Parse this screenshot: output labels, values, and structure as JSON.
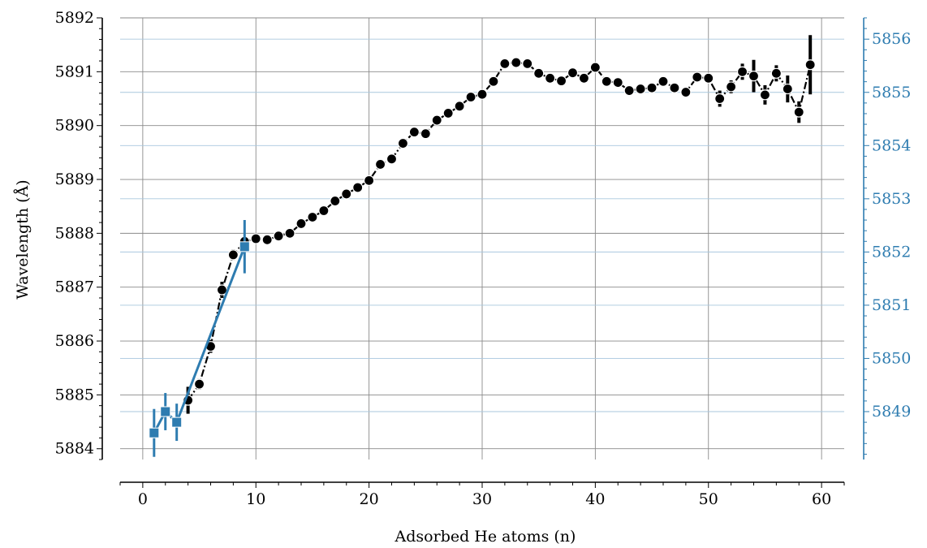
{
  "chart_data": {
    "type": "scatter",
    "title": "",
    "xlabel": "Adsorbed He atoms (n)",
    "ylabel": "Wavelength (Å)",
    "xlim": [
      -2,
      62
    ],
    "ylim": [
      5883.8,
      5892.0
    ],
    "y2lim": [
      5848.1,
      5856.4
    ],
    "x_ticks": [
      0,
      10,
      20,
      30,
      40,
      50,
      60
    ],
    "y_ticks": [
      5884,
      5885,
      5886,
      5887,
      5888,
      5889,
      5890,
      5891,
      5892
    ],
    "y2_ticks": [
      5849,
      5850,
      5851,
      5852,
      5853,
      5854,
      5855,
      5856
    ],
    "grid": true,
    "series": [
      {
        "axis": "left",
        "color": "#000000",
        "marker": "circle",
        "x": [
          4,
          5,
          6,
          7,
          8,
          9,
          10,
          11,
          12,
          13,
          14,
          15,
          16,
          17,
          18,
          19,
          20,
          21,
          22,
          23,
          24,
          25,
          26,
          27,
          28,
          29,
          30,
          31,
          32,
          33,
          34,
          35,
          36,
          37,
          38,
          39,
          40,
          41,
          42,
          43,
          44,
          45,
          46,
          47,
          48,
          49,
          50,
          51,
          52,
          53,
          54,
          55,
          56,
          57,
          58,
          59
        ],
        "y": [
          5884.9,
          5885.2,
          5885.9,
          5886.95,
          5887.6,
          5887.85,
          5887.9,
          5887.88,
          5887.95,
          5888.0,
          5888.18,
          5888.3,
          5888.42,
          5888.6,
          5888.73,
          5888.85,
          5888.98,
          5889.28,
          5889.38,
          5889.67,
          5889.88,
          5889.85,
          5890.1,
          5890.23,
          5890.36,
          5890.53,
          5890.58,
          5890.82,
          5891.15,
          5891.17,
          5891.15,
          5890.97,
          5890.88,
          5890.83,
          5890.98,
          5890.88,
          5891.08,
          5890.82,
          5890.8,
          5890.65,
          5890.68,
          5890.7,
          5890.82,
          5890.7,
          5890.62,
          5890.9,
          5890.88,
          5890.5,
          5890.72,
          5891.0,
          5890.92,
          5890.57,
          5890.97,
          5890.68,
          5890.25,
          5891.13
        ],
        "yerr": [
          0.25,
          0.1,
          0.12,
          0.15,
          0.1,
          0.06,
          0.06,
          0.05,
          0.05,
          0.05,
          0.05,
          0.05,
          0.05,
          0.05,
          0.05,
          0.05,
          0.05,
          0.05,
          0.05,
          0.05,
          0.05,
          0.05,
          0.05,
          0.05,
          0.05,
          0.05,
          0.05,
          0.05,
          0.05,
          0.05,
          0.05,
          0.05,
          0.05,
          0.05,
          0.05,
          0.05,
          0.05,
          0.05,
          0.05,
          0.05,
          0.05,
          0.05,
          0.05,
          0.05,
          0.05,
          0.05,
          0.05,
          0.15,
          0.12,
          0.15,
          0.3,
          0.18,
          0.15,
          0.25,
          0.2,
          0.55
        ]
      },
      {
        "axis": "right",
        "color": "#2e7cb0",
        "marker": "square",
        "x": [
          1,
          2,
          3,
          9
        ],
        "y": [
          5848.6,
          5849.0,
          5848.8,
          5852.1
        ],
        "yerr": [
          0.45,
          0.35,
          0.35,
          0.5
        ]
      }
    ]
  }
}
